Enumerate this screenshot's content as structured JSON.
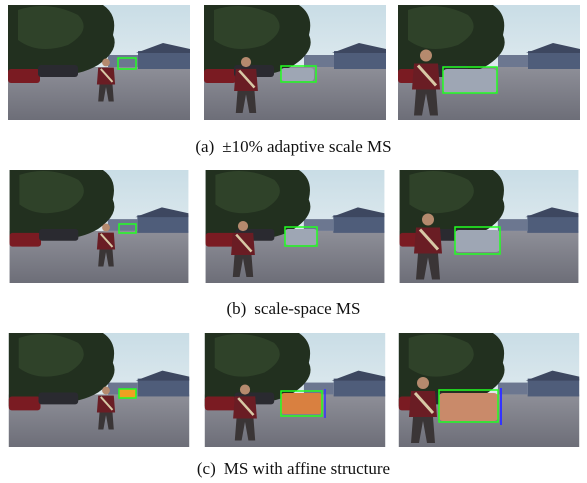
{
  "panels": [
    {
      "label": "(a)",
      "caption": "±10% adaptive scale MS"
    },
    {
      "label": "(b)",
      "caption": "scale-space MS"
    },
    {
      "label": "(c)",
      "caption": "MS with affine structure"
    }
  ]
}
